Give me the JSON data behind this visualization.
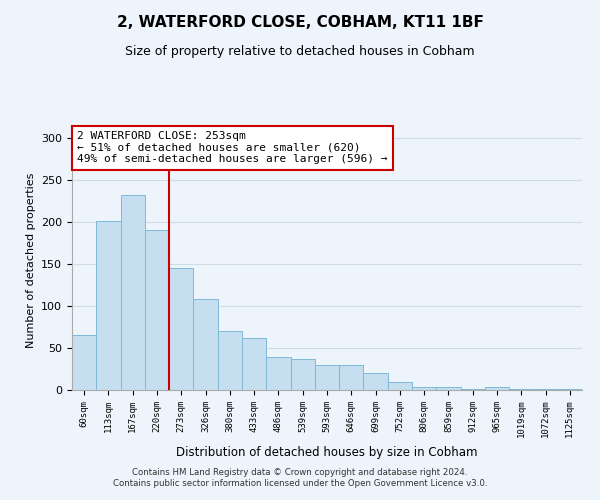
{
  "title": "2, WATERFORD CLOSE, COBHAM, KT11 1BF",
  "subtitle": "Size of property relative to detached houses in Cobham",
  "xlabel": "Distribution of detached houses by size in Cobham",
  "ylabel": "Number of detached properties",
  "bar_labels": [
    "60sqm",
    "113sqm",
    "167sqm",
    "220sqm",
    "273sqm",
    "326sqm",
    "380sqm",
    "433sqm",
    "486sqm",
    "539sqm",
    "593sqm",
    "646sqm",
    "699sqm",
    "752sqm",
    "806sqm",
    "859sqm",
    "912sqm",
    "965sqm",
    "1019sqm",
    "1072sqm",
    "1125sqm"
  ],
  "bar_values": [
    65,
    201,
    233,
    191,
    146,
    108,
    70,
    62,
    39,
    37,
    30,
    30,
    20,
    10,
    4,
    4,
    1,
    4,
    1,
    1,
    1
  ],
  "bar_color": "#c5dff0",
  "bar_edge_color": "#7fb8d8",
  "vline_after_bar": 3,
  "vline_color": "#cc0000",
  "annotation_title": "2 WATERFORD CLOSE: 253sqm",
  "annotation_line1": "← 51% of detached houses are smaller (620)",
  "annotation_line2": "49% of semi-detached houses are larger (596) →",
  "annotation_box_color": "#ffffff",
  "annotation_box_edge": "#cc0000",
  "ylim": [
    0,
    310
  ],
  "yticks": [
    0,
    50,
    100,
    150,
    200,
    250,
    300
  ],
  "grid_color": "#ccdde8",
  "bg_color": "#eef4fb",
  "footer_line1": "Contains HM Land Registry data © Crown copyright and database right 2024.",
  "footer_line2": "Contains public sector information licensed under the Open Government Licence v3.0."
}
